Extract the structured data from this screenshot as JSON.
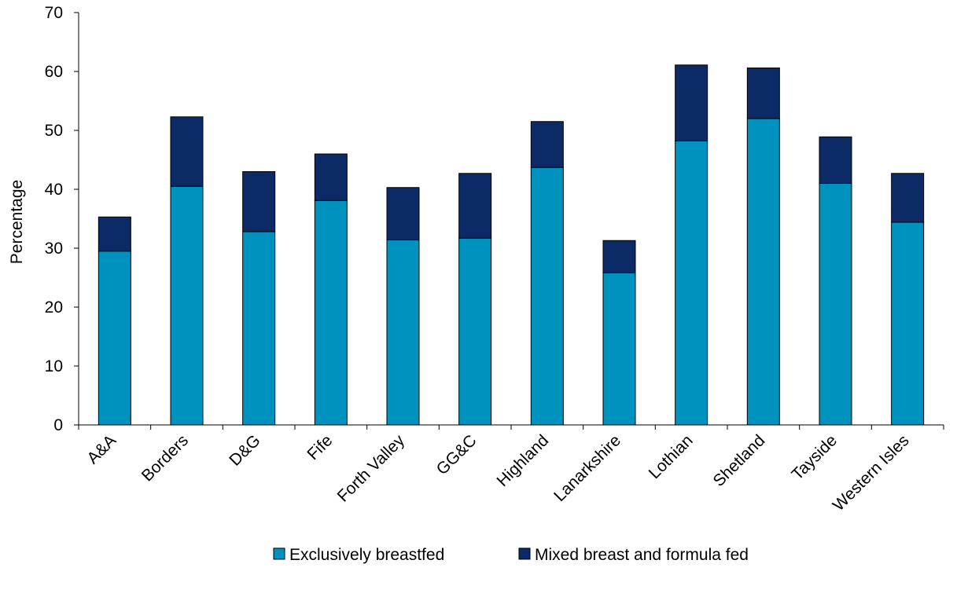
{
  "chart_data": {
    "type": "bar",
    "stacked": true,
    "categories": [
      "A&A",
      "Borders",
      "D&G",
      "Fife",
      "Forth Valley",
      "GG&C",
      "Highland",
      "Lanarkshire",
      "Lothian",
      "Shetland",
      "Tayside",
      "Western Isles"
    ],
    "series": [
      {
        "name": "Exclusively breastfed",
        "color": "#0092BF",
        "values": [
          29.5,
          40.5,
          32.8,
          38.1,
          31.4,
          31.7,
          43.7,
          25.8,
          48.2,
          52.0,
          41.0,
          34.4
        ]
      },
      {
        "name": "Mixed breast and formula fed",
        "color": "#0B2A66",
        "values": [
          5.8,
          11.8,
          10.2,
          7.9,
          8.9,
          11.0,
          7.8,
          5.5,
          12.9,
          8.6,
          7.9,
          8.3
        ]
      }
    ],
    "title": "",
    "xlabel": "",
    "ylabel": "Percentage",
    "ylim": [
      0,
      70
    ],
    "yticks": [
      0,
      10,
      20,
      30,
      40,
      50,
      60,
      70
    ],
    "grid": false,
    "legend_position": "bottom"
  }
}
